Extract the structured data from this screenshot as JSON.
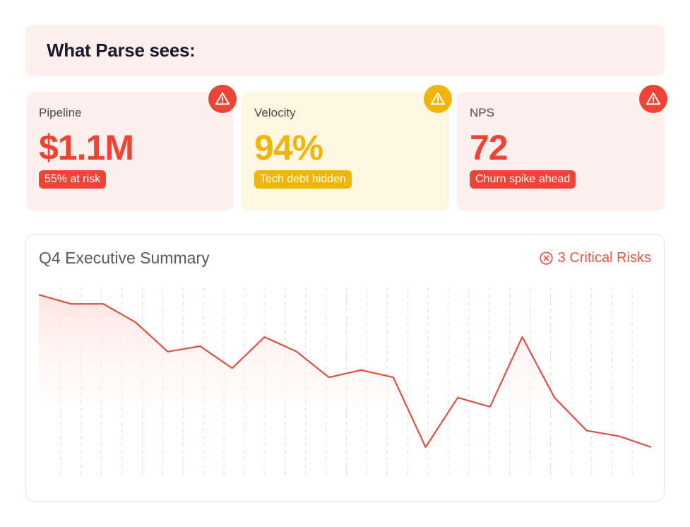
{
  "header": {
    "title": "What Parse sees:"
  },
  "cards": [
    {
      "label": "Pipeline",
      "value": "$1.1M",
      "badge": "55% at risk",
      "alert_icon": "warning-triangle-icon",
      "color": "#ef4335"
    },
    {
      "label": "Velocity",
      "value": "94%",
      "badge": "Tech debt hidden",
      "alert_icon": "warning-triangle-icon",
      "color": "#f0b50a"
    },
    {
      "label": "NPS",
      "value": "72",
      "badge": "Churn spike ahead",
      "alert_icon": "warning-triangle-icon",
      "color": "#ef4335"
    }
  ],
  "summary": {
    "title": "Q4 Executive Summary",
    "risks_label": "3 Critical Risks",
    "risks_icon": "circle-x-icon"
  },
  "chart_data": {
    "type": "line",
    "title": "",
    "xlabel": "",
    "ylabel": "",
    "ylim": [
      0,
      100
    ],
    "grid": "vertical-dashed",
    "color": "#e04f43",
    "values": [
      98,
      93,
      93,
      83,
      67,
      70,
      58,
      75,
      67,
      53,
      57,
      53,
      15,
      42,
      37,
      75,
      42,
      24,
      21,
      15
    ]
  }
}
